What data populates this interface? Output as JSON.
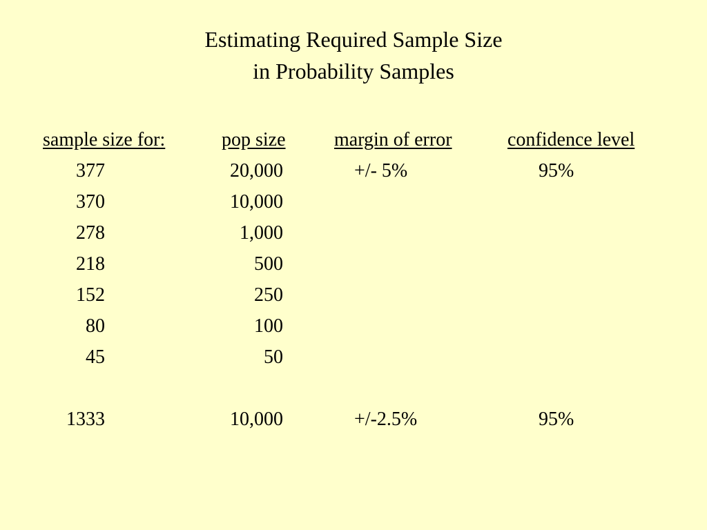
{
  "header": {
    "title": [
      "Estimating Required Sample Size",
      "in Probability Samples"
    ]
  },
  "table": {
    "headers": [
      "sample size for:",
      "pop size",
      "margin of error",
      "confidence level"
    ],
    "rows": [
      {
        "sample_size": "377",
        "pop_size": "20,000",
        "margin_of_error": "+/- 5%",
        "confidence_level": "95%"
      },
      {
        "sample_size": "370",
        "pop_size": "10,000"
      },
      {
        "sample_size": "278",
        "pop_size": "1,000"
      },
      {
        "sample_size": "218",
        "pop_size": "500"
      },
      {
        "sample_size": "152",
        "pop_size": "250"
      },
      {
        "sample_size": "80",
        "pop_size": "100"
      },
      {
        "sample_size": "45",
        "pop_size": "50"
      },
      {
        "sample_size": "1333",
        "pop_size": "10,000",
        "margin_of_error": "+/-2.5%",
        "confidence_level": "95%"
      }
    ]
  }
}
